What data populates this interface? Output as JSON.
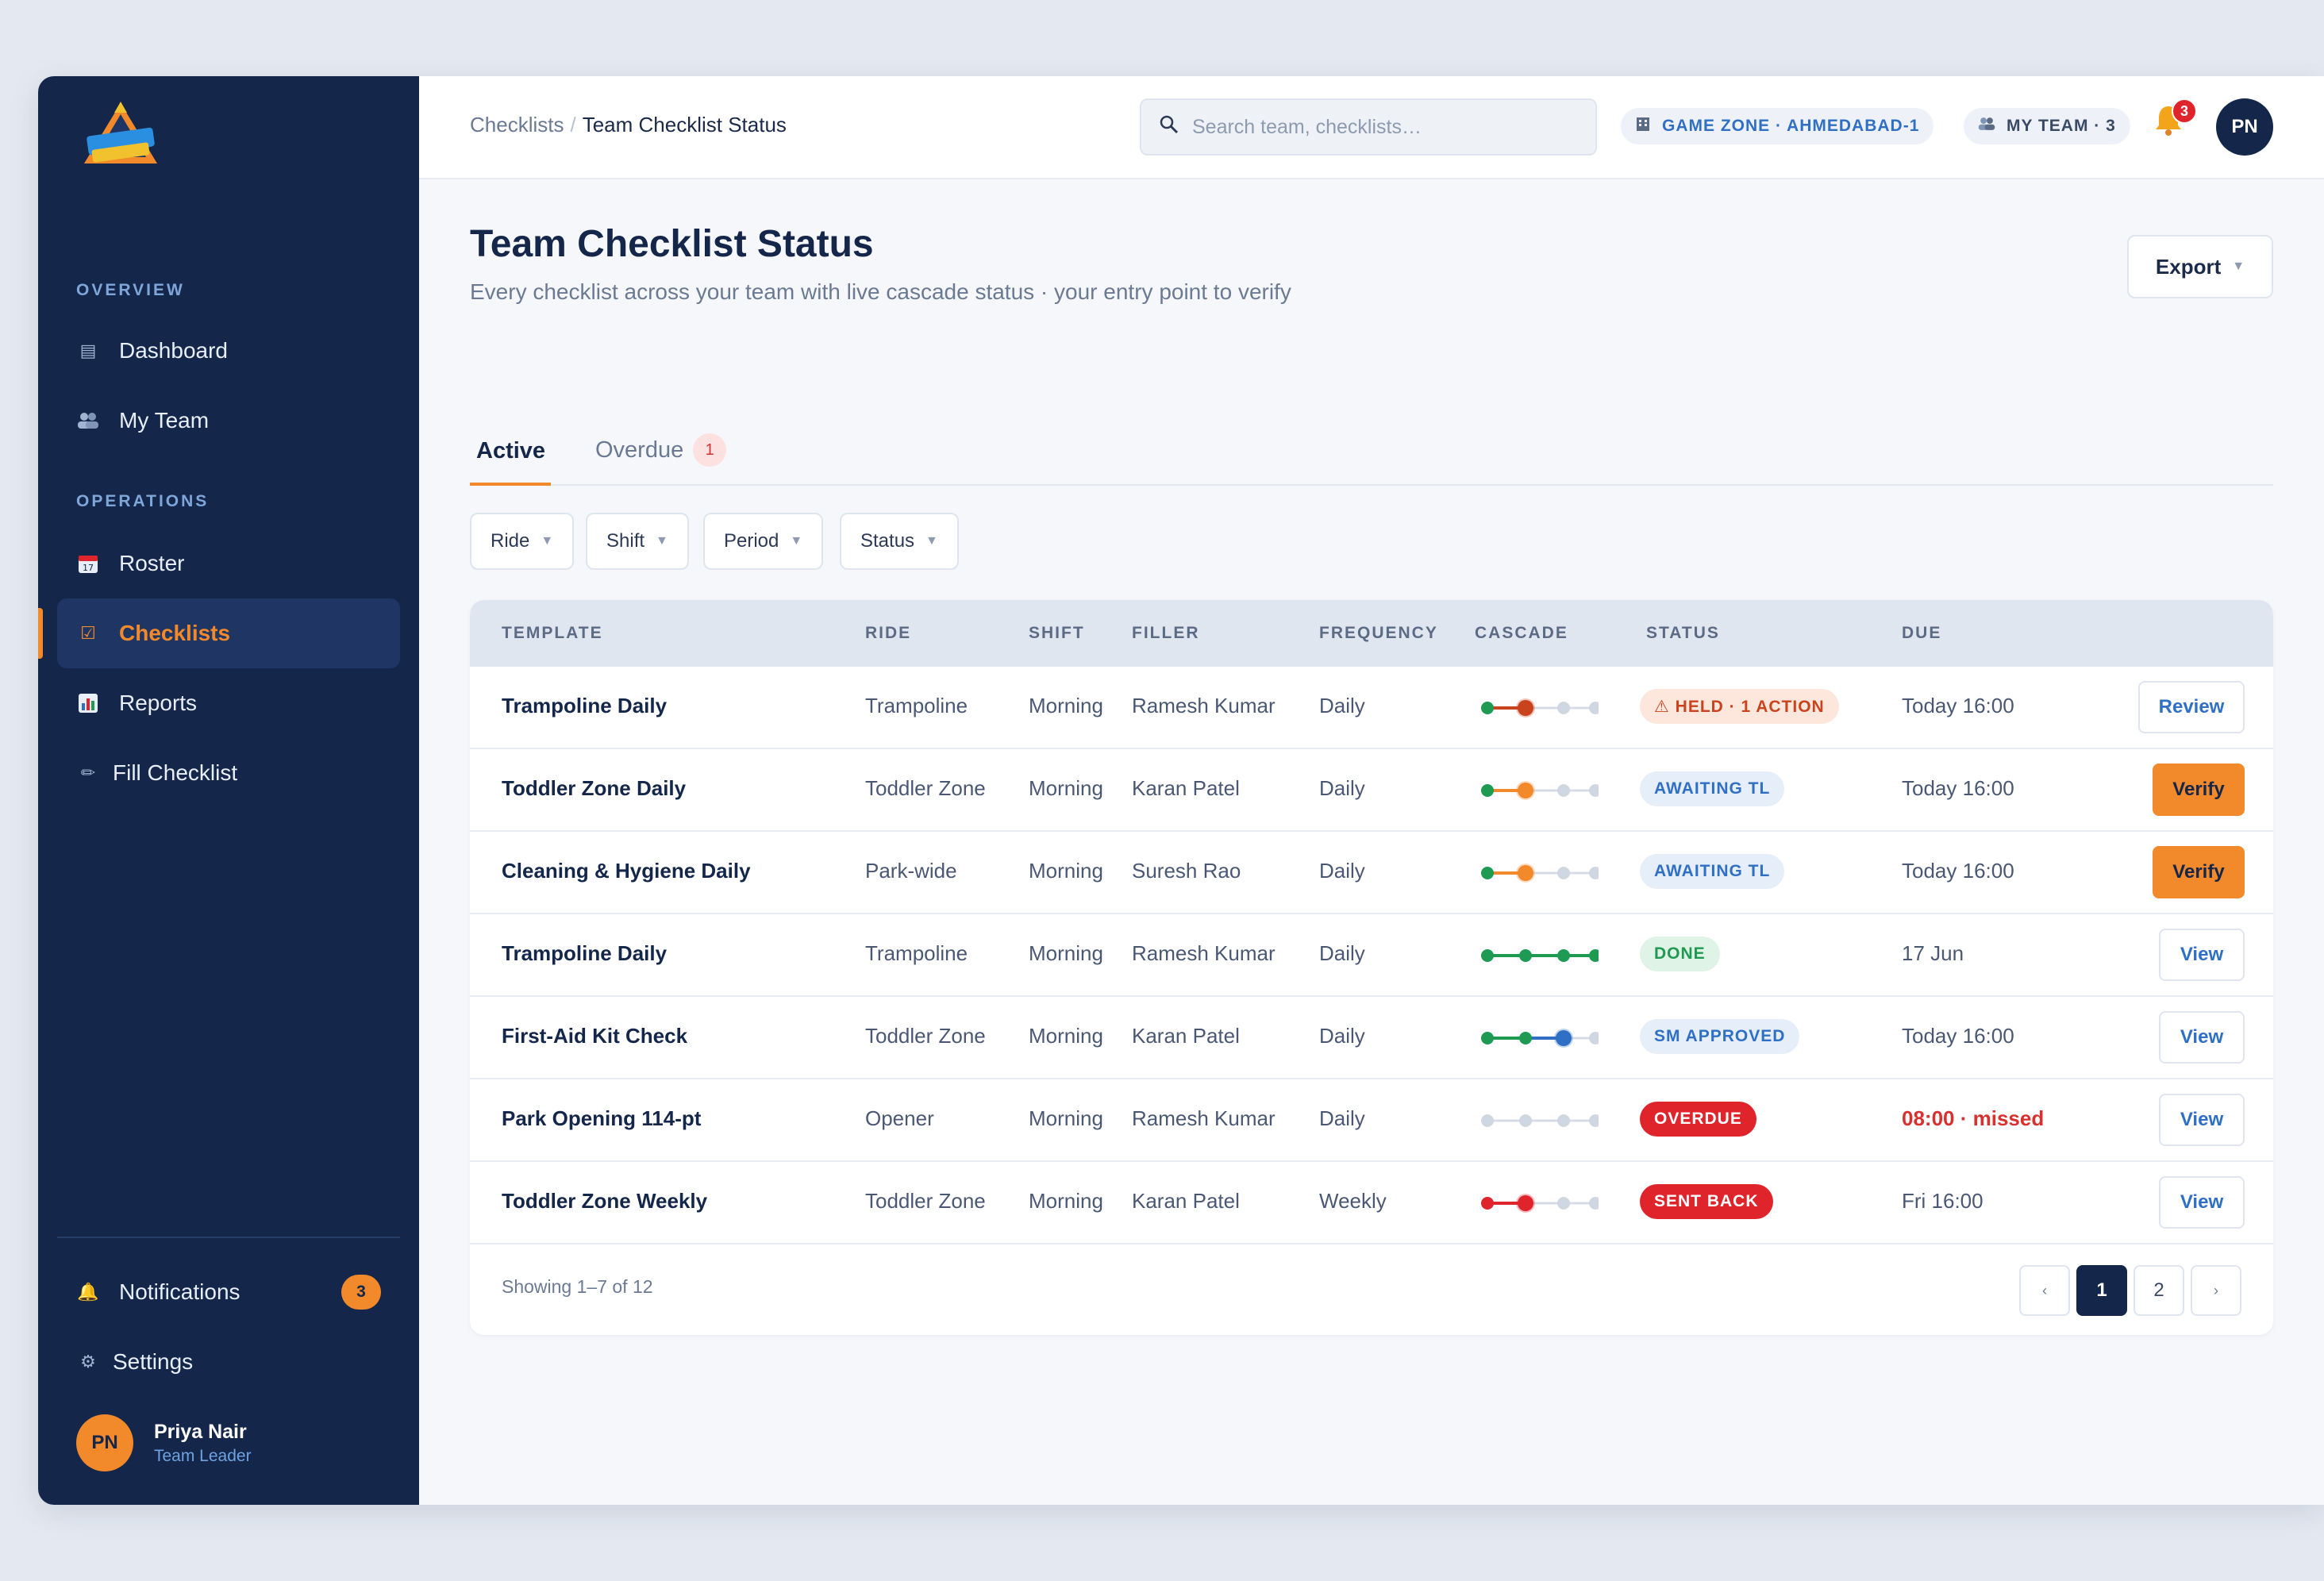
{
  "sidebar": {
    "sections": [
      "OVERVIEW",
      "OPERATIONS"
    ],
    "items": [
      {
        "label": "Dashboard",
        "icon": "dashboard-icon"
      },
      {
        "label": "My Team",
        "icon": "team-icon"
      },
      {
        "label": "Roster",
        "icon": "calendar-icon"
      },
      {
        "label": "Checklists",
        "icon": "checkbox-icon"
      },
      {
        "label": "Reports",
        "icon": "bar-chart-icon"
      },
      {
        "label": "Fill Checklist",
        "icon": "pencil-icon"
      },
      {
        "label": "Notifications",
        "icon": "bell-icon",
        "badge": "3"
      },
      {
        "label": "Settings",
        "icon": "gear-icon"
      }
    ],
    "user": {
      "initials": "PN",
      "name": "Priya Nair",
      "role": "Team Leader"
    }
  },
  "topbar": {
    "breadcrumb": [
      "Checklists",
      "Team Checklist Status"
    ],
    "search_placeholder": "Search team, checklists…",
    "zone_chip": "GAME ZONE · AHMEDABAD-1",
    "team_chip": "MY TEAM · 3",
    "bell_badge": "3",
    "avatar": "PN"
  },
  "page": {
    "title": "Team Checklist Status",
    "subtitle": "Every checklist across your team with live cascade status · your entry point to verify",
    "export_label": "Export"
  },
  "tabs": [
    {
      "label": "Active",
      "active": true
    },
    {
      "label": "Overdue",
      "badge": "1"
    }
  ],
  "filters": [
    "Ride",
    "Shift",
    "Period",
    "Status"
  ],
  "table": {
    "columns": [
      "TEMPLATE",
      "RIDE",
      "SHIFT",
      "FILLER",
      "FREQUENCY",
      "CASCADE",
      "STATUS",
      "DUE"
    ],
    "rows": [
      {
        "template": "Trampoline Daily",
        "ride": "Trampoline",
        "shift": "Morning",
        "filler": "Ramesh Kumar",
        "frequency": "Daily",
        "cascade": 2,
        "cascade_color": "#c9431f",
        "status": "⚠ HELD · 1 ACTION",
        "status_kind": "held",
        "due": "Today 16:00",
        "action": "Review",
        "action_kind": "outline"
      },
      {
        "template": "Toddler Zone Daily",
        "ride": "Toddler Zone",
        "shift": "Morning",
        "filler": "Karan Patel",
        "frequency": "Daily",
        "cascade": 2,
        "cascade_color": "#f2892a",
        "status": "AWAITING TL",
        "status_kind": "await",
        "due": "Today 16:00",
        "action": "Verify",
        "action_kind": "primary"
      },
      {
        "template": "Cleaning & Hygiene Daily",
        "ride": "Park-wide",
        "shift": "Morning",
        "filler": "Suresh Rao",
        "frequency": "Daily",
        "cascade": 2,
        "cascade_color": "#f2892a",
        "status": "AWAITING TL",
        "status_kind": "await",
        "due": "Today 16:00",
        "action": "Verify",
        "action_kind": "primary"
      },
      {
        "template": "Trampoline Daily",
        "ride": "Trampoline",
        "shift": "Morning",
        "filler": "Ramesh Kumar",
        "frequency": "Daily",
        "cascade": 4,
        "cascade_color": "#1f9a53",
        "status": "DONE",
        "status_kind": "done",
        "due": "17 Jun",
        "action": "View",
        "action_kind": "outline"
      },
      {
        "template": "First-Aid Kit Check",
        "ride": "Toddler Zone",
        "shift": "Morning",
        "filler": "Karan Patel",
        "frequency": "Daily",
        "cascade": 3,
        "cascade_color": "#2f6fc4",
        "status": "SM APPROVED",
        "status_kind": "sm",
        "due": "Today 16:00",
        "action": "View",
        "action_kind": "outline"
      },
      {
        "template": "Park Opening 114-pt",
        "ride": "Opener",
        "shift": "Morning",
        "filler": "Ramesh Kumar",
        "frequency": "Daily",
        "cascade": 0,
        "cascade_color": "#cfd7e3",
        "status": "OVERDUE",
        "status_kind": "overdue",
        "due": "08:00 · missed",
        "due_missed": true,
        "action": "View",
        "action_kind": "outline"
      },
      {
        "template": "Toddler Zone Weekly",
        "ride": "Toddler Zone",
        "shift": "Morning",
        "filler": "Karan Patel",
        "frequency": "Weekly",
        "cascade": 2,
        "cascade_color": "#e0242b",
        "status": "SENT BACK",
        "status_kind": "sent",
        "due": "Fri 16:00",
        "action": "View",
        "action_kind": "outline"
      }
    ],
    "footer": "Showing 1–7 of 12",
    "pages": [
      "‹",
      "1",
      "2",
      "›"
    ],
    "current_page": "1"
  },
  "colors": {
    "navy": "#14264a",
    "accent": "#f2892a",
    "green": "#1f9a53",
    "red": "#e0242b",
    "blue": "#2f6fc4"
  }
}
